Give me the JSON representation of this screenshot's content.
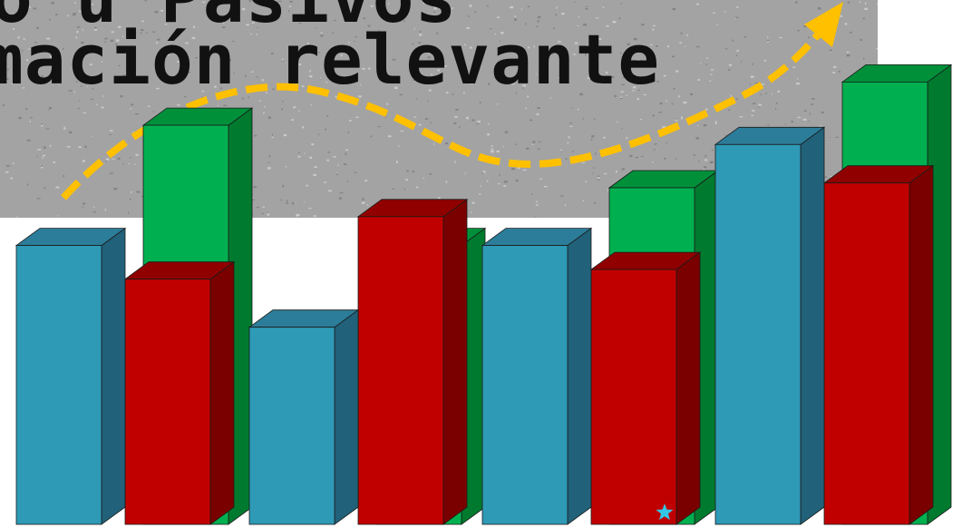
{
  "title": {
    "line1": "o u Pasivos",
    "line2": "mación relevante"
  },
  "colors": {
    "banner": "#a3a3a3",
    "arrow": "#ffc000",
    "star": "#34c6e6",
    "series": [
      {
        "front": "#2e9ab6",
        "side": "#216179",
        "top": "#2c7d99"
      },
      {
        "front": "#c00000",
        "side": "#7a0000",
        "top": "#900000"
      },
      {
        "front": "#00b050",
        "side": "#007a2e",
        "top": "#00903a"
      }
    ]
  },
  "decorations": {
    "trend_arrow": "dashed-trend-arrow",
    "star": "star-icon"
  },
  "chart_data": {
    "type": "bar",
    "style": "3d-clustered-column",
    "categories": [
      "",
      "",
      "",
      ""
    ],
    "series": [
      {
        "values": [
          58,
          41,
          58,
          79
        ]
      },
      {
        "values": [
          51,
          64,
          53,
          71
        ]
      },
      {
        "values": [
          83,
          58,
          70,
          92
        ]
      }
    ],
    "axes_visible": false,
    "grid": false,
    "legend": "none",
    "ylim": [
      0,
      100
    ]
  }
}
